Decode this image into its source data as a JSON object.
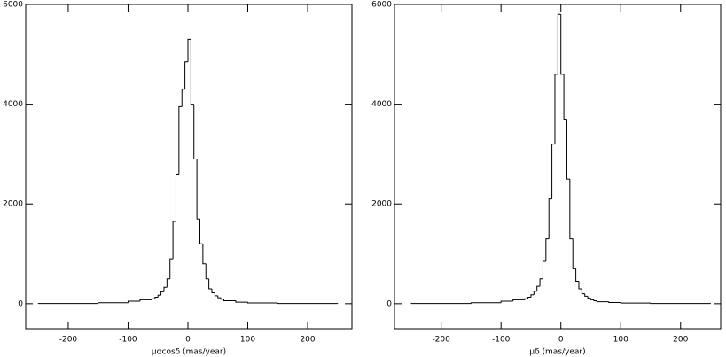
{
  "chart_data": [
    {
      "type": "histogram",
      "x_label": "μαcosδ (mas/year)",
      "color": "#000000",
      "bins": [
        -250,
        -150,
        -100,
        -80,
        -60,
        -55,
        -50,
        -45,
        -40,
        -35,
        -30,
        -25,
        -20,
        -15,
        -10,
        -5,
        0,
        5,
        10,
        15,
        20,
        25,
        30,
        35,
        40,
        45,
        50,
        55,
        60,
        80,
        100,
        150,
        250
      ],
      "counts": [
        5,
        20,
        50,
        80,
        100,
        130,
        170,
        240,
        330,
        500,
        900,
        1650,
        2600,
        3950,
        4300,
        4850,
        5300,
        4000,
        2900,
        1700,
        1200,
        800,
        500,
        300,
        220,
        160,
        120,
        90,
        60,
        30,
        15,
        5
      ],
      "xlim": [
        -271,
        274
      ],
      "ylim": [
        -500,
        6000
      ],
      "xticks": [
        -200,
        -100,
        0,
        100,
        200
      ],
      "yticks": [
        0,
        2000,
        4000,
        6000
      ]
    },
    {
      "type": "histogram",
      "x_label": "μδ (mas/year)",
      "color": "#000000",
      "bins": [
        -250,
        -150,
        -100,
        -80,
        -60,
        -55,
        -50,
        -45,
        -40,
        -35,
        -30,
        -25,
        -20,
        -15,
        -10,
        -5,
        0,
        5,
        10,
        15,
        20,
        25,
        30,
        35,
        40,
        45,
        50,
        55,
        60,
        80,
        100,
        150,
        250
      ],
      "counts": [
        5,
        20,
        50,
        80,
        100,
        130,
        180,
        250,
        350,
        500,
        850,
        1300,
        2100,
        3200,
        4600,
        5800,
        4600,
        3700,
        2500,
        1300,
        700,
        450,
        300,
        200,
        150,
        110,
        80,
        60,
        40,
        25,
        12,
        5
      ],
      "xlim": [
        -278,
        267
      ],
      "ylim": [
        -500,
        6000
      ],
      "xticks": [
        -200,
        -100,
        0,
        100,
        200
      ],
      "yticks": [
        0,
        2000,
        4000,
        6000
      ]
    }
  ]
}
